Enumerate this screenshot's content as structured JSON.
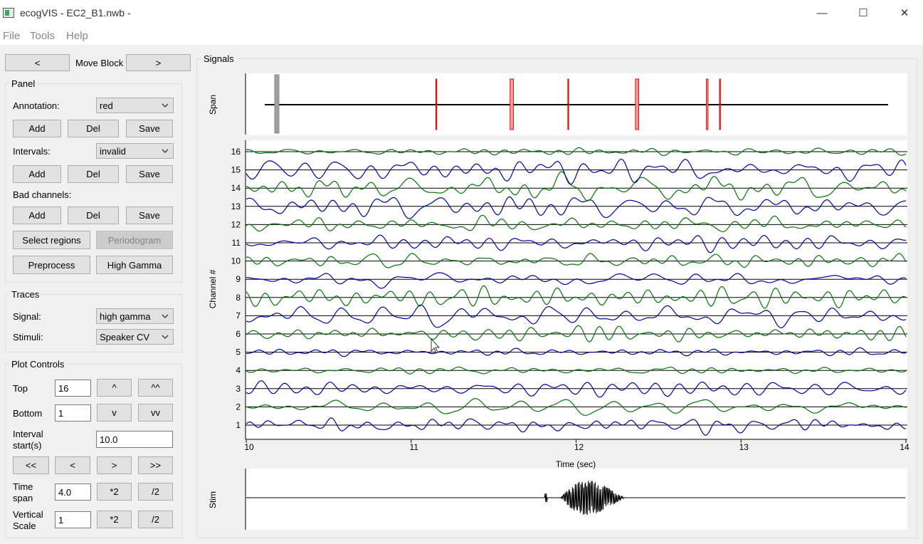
{
  "window": {
    "title": "ecogVIS - EC2_B1.nwb -",
    "minimize": "—",
    "maximize": "☐",
    "close": "✕"
  },
  "menu": {
    "file": "File",
    "tools": "Tools",
    "help": "Help"
  },
  "block": {
    "prev": "<",
    "label": "Move Block",
    "next": ">"
  },
  "panel": {
    "title": "Panel",
    "annotation_label": "Annotation:",
    "annotation_value": "red",
    "intervals_label": "Intervals:",
    "intervals_value": "invalid",
    "bad_channels_label": "Bad channels:",
    "add": "Add",
    "del": "Del",
    "save": "Save",
    "select_regions": "Select regions",
    "periodogram": "Periodogram",
    "preprocess": "Preprocess",
    "high_gamma": "High Gamma"
  },
  "traces": {
    "title": "Traces",
    "signal_label": "Signal:",
    "signal_value": "high gamma",
    "stimuli_label": "Stimuli:",
    "stimuli_value": "Speaker CV"
  },
  "plot_controls": {
    "title": "Plot Controls",
    "top_label": "Top",
    "top_value": "16",
    "up": "^",
    "up2": "^^",
    "bottom_label": "Bottom",
    "bottom_value": "1",
    "down": "v",
    "down2": "vv",
    "interval_label_1": "Interval",
    "interval_label_2": "start(s)",
    "interval_value": "10.0",
    "first": "<<",
    "back": "<",
    "forward": ">",
    "last": ">>",
    "timespan_label_1": "Time",
    "timespan_label_2": "span",
    "timespan_value": "4.0",
    "times2": "*2",
    "div2": "/2",
    "vscale_label_1": "Vertical",
    "vscale_label_2": "Scale",
    "vscale_value": "1"
  },
  "signals": {
    "title": "Signals",
    "span_label": "Span",
    "channel_label": "Channel #",
    "time_label": "Time (sec)",
    "stim_label": "Stim",
    "x_ticks": [
      "10",
      "11",
      "12",
      "13",
      "14"
    ],
    "channels": [
      "1",
      "2",
      "3",
      "4",
      "5",
      "6",
      "7",
      "8",
      "9",
      "10",
      "11",
      "12",
      "13",
      "14",
      "15",
      "16"
    ],
    "colors": {
      "blue": "#0000aa",
      "green": "#007700",
      "annotation": "#ff0000",
      "span_cursor": "#a0a0a0"
    }
  },
  "chart_data": {
    "type": "line",
    "title": "",
    "xlabel": "Time (sec)",
    "ylabel": "Channel #",
    "xlim": [
      10,
      14
    ],
    "ylim": [
      0.5,
      16.5
    ],
    "x_ticks": [
      10,
      11,
      12,
      13,
      14
    ],
    "y_ticks": [
      1,
      2,
      3,
      4,
      5,
      6,
      7,
      8,
      9,
      10,
      11,
      12,
      13,
      14,
      15,
      16
    ],
    "series": [
      {
        "channel": 1,
        "color": "#0000aa"
      },
      {
        "channel": 2,
        "color": "#007700"
      },
      {
        "channel": 3,
        "color": "#0000aa"
      },
      {
        "channel": 4,
        "color": "#007700"
      },
      {
        "channel": 5,
        "color": "#0000aa"
      },
      {
        "channel": 6,
        "color": "#007700"
      },
      {
        "channel": 7,
        "color": "#0000aa"
      },
      {
        "channel": 8,
        "color": "#007700"
      },
      {
        "channel": 9,
        "color": "#0000aa"
      },
      {
        "channel": 10,
        "color": "#007700"
      },
      {
        "channel": 11,
        "color": "#0000aa"
      },
      {
        "channel": 12,
        "color": "#007700"
      },
      {
        "channel": 13,
        "color": "#0000aa"
      },
      {
        "channel": 14,
        "color": "#007700"
      },
      {
        "channel": 15,
        "color": "#0000aa"
      },
      {
        "channel": 16,
        "color": "#007700"
      }
    ],
    "span_annotations": [
      {
        "start": 11.15,
        "end": 11.15
      },
      {
        "start": 11.6,
        "end": 11.62
      },
      {
        "start": 11.95,
        "end": 11.95
      },
      {
        "start": 12.36,
        "end": 12.38
      },
      {
        "start": 12.79,
        "end": 12.8
      },
      {
        "start": 12.87,
        "end": 12.87
      }
    ],
    "stim_burst": [
      11.95,
      12.45
    ]
  }
}
